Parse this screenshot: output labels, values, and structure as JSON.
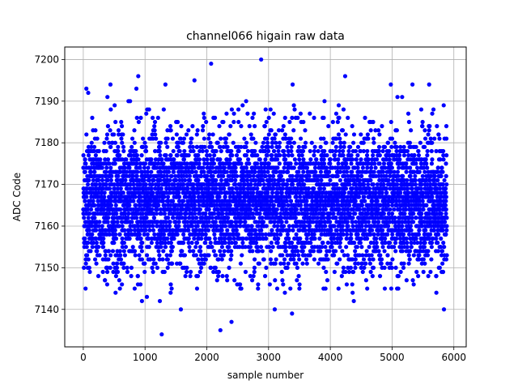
{
  "chart_data": {
    "type": "scatter",
    "title": "channel066 higain raw data",
    "xlabel": "sample number",
    "ylabel": "ADC Code",
    "xlim": [
      -300,
      6200
    ],
    "ylim": [
      7131,
      7203
    ],
    "xticks": [
      0,
      1000,
      2000,
      3000,
      4000,
      5000,
      6000
    ],
    "yticks": [
      7140,
      7150,
      7160,
      7170,
      7180,
      7190,
      7200
    ],
    "grid": true,
    "legend": "none",
    "marker_color": "#0000ff",
    "series": [
      {
        "n_points": 5888,
        "x_range": [
          0,
          5887
        ],
        "baseline_mean": 7166,
        "baseline_spread": 8,
        "outliers": [
          {
            "x": 50,
            "y": 7193
          },
          {
            "x": 80,
            "y": 7192
          },
          {
            "x": 440,
            "y": 7194
          },
          {
            "x": 890,
            "y": 7196
          },
          {
            "x": 860,
            "y": 7193
          },
          {
            "x": 1330,
            "y": 7194
          },
          {
            "x": 1800,
            "y": 7195
          },
          {
            "x": 2070,
            "y": 7199
          },
          {
            "x": 2880,
            "y": 7200
          },
          {
            "x": 3390,
            "y": 7194
          },
          {
            "x": 4240,
            "y": 7196
          },
          {
            "x": 4980,
            "y": 7194
          },
          {
            "x": 5330,
            "y": 7194
          },
          {
            "x": 5600,
            "y": 7194
          },
          {
            "x": 1270,
            "y": 7134
          },
          {
            "x": 2220,
            "y": 7135
          },
          {
            "x": 2400,
            "y": 7137
          },
          {
            "x": 3100,
            "y": 7140
          },
          {
            "x": 3380,
            "y": 7139
          },
          {
            "x": 1580,
            "y": 7140
          },
          {
            "x": 5840,
            "y": 7140
          },
          {
            "x": 4380,
            "y": 7142
          },
          {
            "x": 950,
            "y": 7142
          },
          {
            "x": 1030,
            "y": 7143
          },
          {
            "x": 1240,
            "y": 7142
          }
        ]
      }
    ]
  }
}
